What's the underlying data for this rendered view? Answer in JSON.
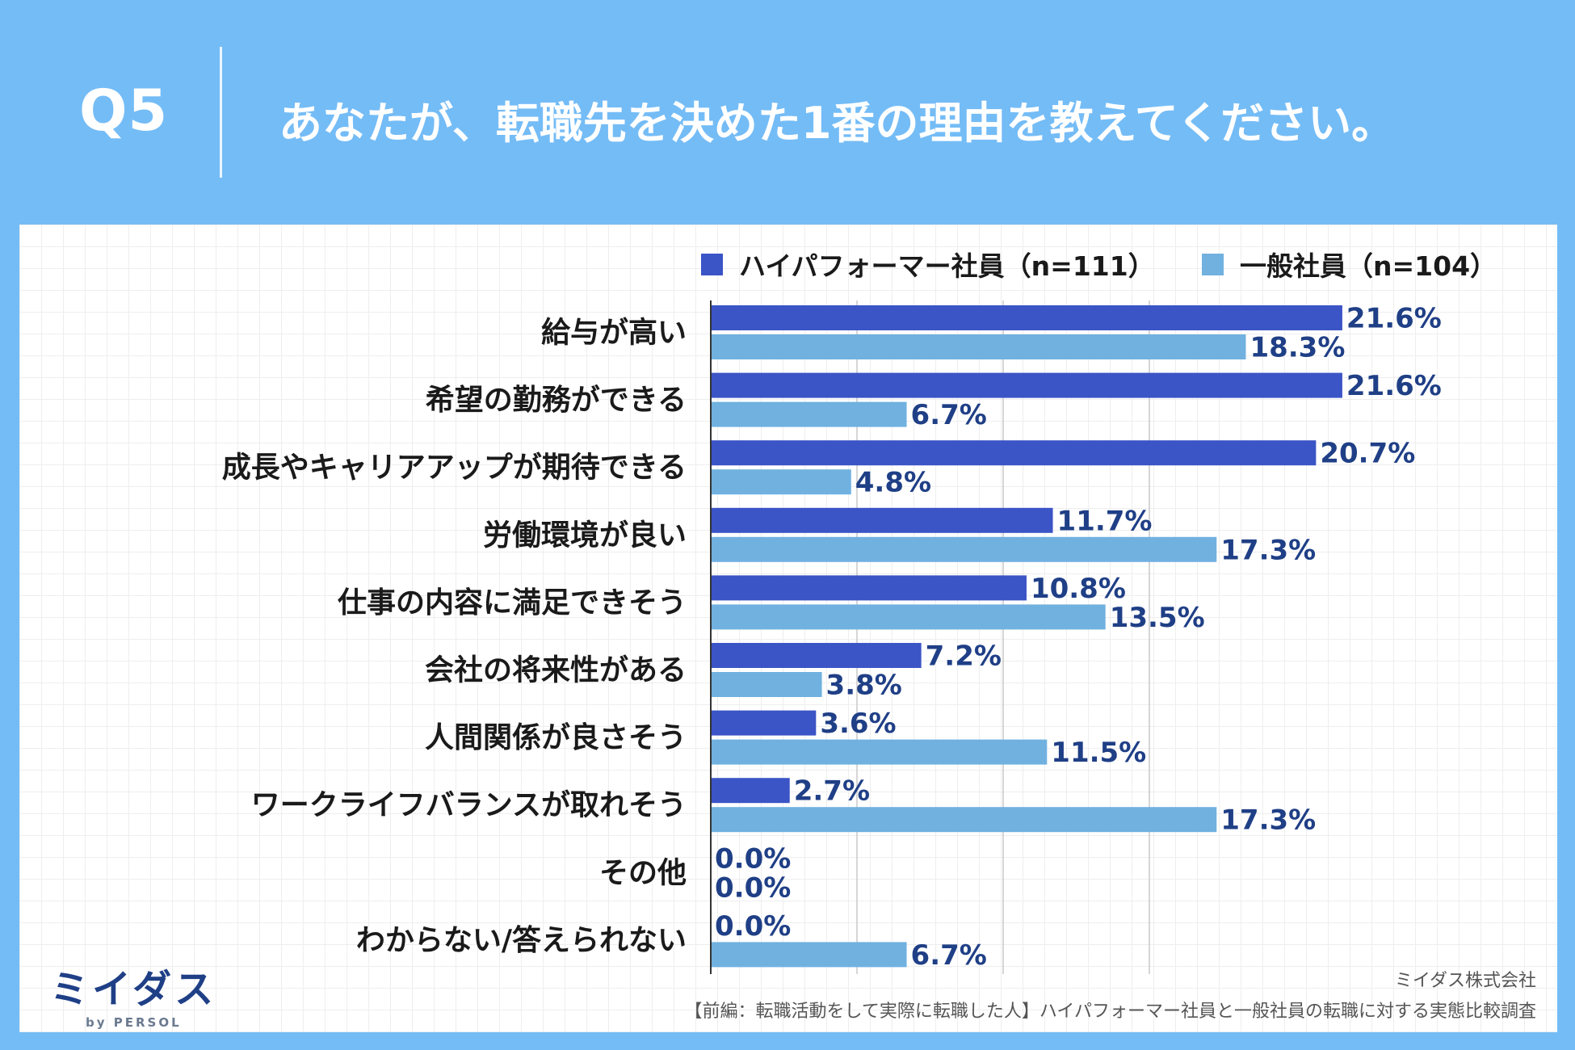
{
  "header": {
    "question_number": "Q5",
    "question_text": "あなたが、転職先を決めた1番の理由を教えてください。"
  },
  "colors": {
    "background": "#74bcf6",
    "series_high": "#3b54c6",
    "series_general": "#70b1e0",
    "value_label": "#1f3f86"
  },
  "chart_data": {
    "type": "bar",
    "orientation": "horizontal",
    "title": "あなたが、転職先を決めた1番の理由を教えてください。",
    "xlim": [
      0,
      25
    ],
    "grid": true,
    "legend_position": "top-right",
    "categories": [
      "給与が高い",
      "希望の勤務ができる",
      "成長やキャリアアップが期待できる",
      "労働環境が良い",
      "仕事の内容に満足できそう",
      "会社の将来性がある",
      "人間関係が良さそう",
      "ワークライフバランスが取れそう",
      "その他",
      "わからない/答えられない"
    ],
    "series": [
      {
        "name": "ハイパフォーマー社員（n=111）",
        "color": "#3b54c6",
        "values": [
          21.6,
          21.6,
          20.7,
          11.7,
          10.8,
          7.2,
          3.6,
          2.7,
          0.0,
          0.0
        ],
        "labels": [
          "21.6%",
          "21.6%",
          "20.7%",
          "11.7%",
          "10.8%",
          "7.2%",
          "3.6%",
          "2.7%",
          "0.0%",
          "0.0%"
        ]
      },
      {
        "name": "一般社員（n=104）",
        "color": "#70b1e0",
        "values": [
          18.3,
          6.7,
          4.8,
          17.3,
          13.5,
          3.8,
          11.5,
          17.3,
          0.0,
          6.7
        ],
        "labels": [
          "18.3%",
          "6.7%",
          "4.8%",
          "17.3%",
          "13.5%",
          "3.8%",
          "11.5%",
          "17.3%",
          "0.0%",
          "6.7%"
        ]
      }
    ]
  },
  "footer": {
    "logo_text": "ミイダス",
    "logo_sub": "by PERSOL",
    "company": "ミイダス株式会社",
    "source": "【前編：転職活動をして実際に転職した人】ハイパフォーマー社員と一般社員の転職に対する実態比較調査"
  }
}
